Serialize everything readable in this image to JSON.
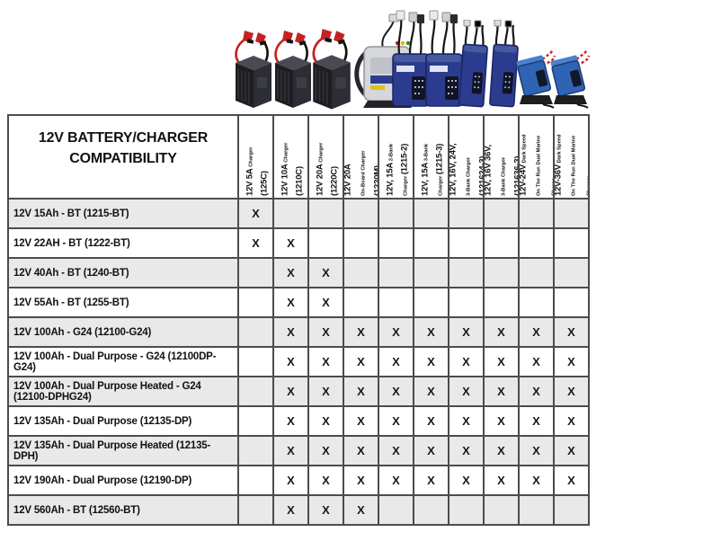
{
  "title": "12V BATTERY/CHARGER COMPATIBILITY",
  "colors": {
    "row_alt": "#e9e9e9",
    "row_normal": "#ffffff",
    "grid_line": "#4c4c4c",
    "outer_border": "#161616",
    "black_charger": "#212126",
    "blue_charger": "#2b3c8f",
    "silver_charger": "#d6d7db",
    "clamp_red": "#c32222"
  },
  "table": {
    "columns": [
      {
        "name": "12v-5a-charger-125c",
        "lines": [
          [
            {
              "text": "12V 5A",
              "small": false
            },
            {
              "text": " Charger",
              "small": true
            }
          ],
          [
            {
              "text": "(125C)",
              "small": false
            }
          ]
        ]
      },
      {
        "name": "12v-10a-charger-1210c",
        "lines": [
          [
            {
              "text": "12V 10A",
              "small": false
            },
            {
              "text": " Charger",
              "small": true
            }
          ],
          [
            {
              "text": "(1210C)",
              "small": false
            }
          ]
        ]
      },
      {
        "name": "12v-20a-charger-1220c",
        "lines": [
          [
            {
              "text": "12V 20A",
              "small": false
            },
            {
              "text": " Charger",
              "small": true
            }
          ],
          [
            {
              "text": "(1220C)",
              "small": false
            }
          ]
        ]
      },
      {
        "name": "12v-20a-onboard-charger-1220m",
        "lines": [
          [
            {
              "text": "12V 20A",
              "small": false
            }
          ],
          [
            {
              "text": "On-Board Charger",
              "small": true
            }
          ],
          [
            {
              "text": "(1220M)",
              "small": false
            }
          ]
        ]
      },
      {
        "name": "12v-15a-2bank-charger-1215-2",
        "lines": [
          [
            {
              "text": "12V, 15A",
              "small": false
            },
            {
              "text": " 2-Bank",
              "small": true
            }
          ],
          [
            {
              "text": "Charger ",
              "small": true
            },
            {
              "text": "(1215-2)",
              "small": false
            }
          ]
        ]
      },
      {
        "name": "12v-15a-3bank-charger-1215-3",
        "lines": [
          [
            {
              "text": "12V, 15A",
              "small": false
            },
            {
              "text": " 3-Bank",
              "small": true
            }
          ],
          [
            {
              "text": "Charger ",
              "small": true
            },
            {
              "text": "(1215-3)",
              "small": false
            }
          ]
        ]
      },
      {
        "name": "12v-16v-24v-3bank-charger-121624-3",
        "lines": [
          [
            {
              "text": "12V, 16V, 24V,",
              "small": false
            }
          ],
          [
            {
              "text": "3-Bank Charger",
              "small": true
            }
          ],
          [
            {
              "text": "(121624-3)",
              "small": false
            }
          ]
        ]
      },
      {
        "name": "12v-16v-36v-3bank-charger-121636-3",
        "lines": [
          [
            {
              "text": "12V, 16V 36V,",
              "small": false
            }
          ],
          [
            {
              "text": "3-Bank Charger",
              "small": true
            }
          ],
          [
            {
              "text": "(121636-3)",
              "small": false
            }
          ]
        ]
      },
      {
        "name": "12v-24v-dark-speed-dual-marine-charger",
        "lines": [
          [
            {
              "text": "12V-24V",
              "small": false
            },
            {
              "text": " Dark Speed",
              "small": true
            }
          ],
          [
            {
              "text": "On The Run Dual Marine",
              "small": true
            }
          ],
          [
            {
              "text": "Charge",
              "small": true
            }
          ]
        ]
      },
      {
        "name": "12v-36v-dark-speed-dual-marine-charger",
        "lines": [
          [
            {
              "text": "12V-36V",
              "small": false
            },
            {
              "text": " Dark Speed",
              "small": true
            }
          ],
          [
            {
              "text": "On The Run Dual Marine",
              "small": true
            }
          ],
          [
            {
              "text": "Charger",
              "small": true
            }
          ]
        ]
      }
    ],
    "rows": [
      {
        "label": "12V 15Ah - BT (1215-BT)",
        "marks": [
          "X",
          "",
          "",
          "",
          "",
          "",
          "",
          "",
          "",
          ""
        ]
      },
      {
        "label": "12V 22AH - BT (1222-BT)",
        "marks": [
          "X",
          "X",
          "",
          "",
          "",
          "",
          "",
          "",
          "",
          ""
        ]
      },
      {
        "label": "12V 40Ah - BT (1240-BT)",
        "marks": [
          "",
          "X",
          "X",
          "",
          "",
          "",
          "",
          "",
          "",
          ""
        ]
      },
      {
        "label": "12V 55Ah - BT (1255-BT)",
        "marks": [
          "",
          "X",
          "X",
          "",
          "",
          "",
          "",
          "",
          "",
          ""
        ]
      },
      {
        "label": "12V 100Ah - G24 (12100-G24)",
        "marks": [
          "",
          "X",
          "X",
          "X",
          "X",
          "X",
          "X",
          "X",
          "X",
          "X"
        ]
      },
      {
        "label": "12V 100Ah - Dual Purpose - G24 (12100DP-G24)",
        "marks": [
          "",
          "X",
          "X",
          "X",
          "X",
          "X",
          "X",
          "X",
          "X",
          "X"
        ]
      },
      {
        "label": "12V 100Ah - Dual Purpose Heated - G24 (12100-DPHG24)",
        "marks": [
          "",
          "X",
          "X",
          "X",
          "X",
          "X",
          "X",
          "X",
          "X",
          "X"
        ]
      },
      {
        "label": "12V 135Ah - Dual Purpose (12135-DP)",
        "marks": [
          "",
          "X",
          "X",
          "X",
          "X",
          "X",
          "X",
          "X",
          "X",
          "X"
        ]
      },
      {
        "label": "12V 135Ah - Dual Purpose Heated (12135-DPH)",
        "marks": [
          "",
          "X",
          "X",
          "X",
          "X",
          "X",
          "X",
          "X",
          "X",
          "X"
        ]
      },
      {
        "label": "12V 190Ah - Dual Purpose (12190-DP)",
        "marks": [
          "",
          "X",
          "X",
          "X",
          "X",
          "X",
          "X",
          "X",
          "X",
          "X"
        ]
      },
      {
        "label": "12V 560Ah - BT (12560-BT)",
        "marks": [
          "",
          "X",
          "X",
          "X",
          "",
          "",
          "",
          "",
          "",
          ""
        ]
      }
    ]
  },
  "products": [
    {
      "name": "12v-5a-charger-photo",
      "type": "black"
    },
    {
      "name": "12v-10a-charger-photo",
      "type": "black"
    },
    {
      "name": "12v-20a-charger-photo",
      "type": "black"
    },
    {
      "name": "12v-20a-onboard-charger-photo",
      "type": "silver"
    },
    {
      "name": "12v-15a-2bank-charger-photo",
      "type": "blueplugs"
    },
    {
      "name": "12v-15a-3bank-charger-photo",
      "type": "blueplugs"
    },
    {
      "name": "121624-3-charger-photo",
      "type": "tallblue"
    },
    {
      "name": "121636-3-charger-photo",
      "type": "tallblue"
    },
    {
      "name": "12v-24v-dual-marine-charger-photo",
      "type": "marine"
    },
    {
      "name": "12v-36v-dual-marine-charger-photo",
      "type": "marine"
    }
  ]
}
